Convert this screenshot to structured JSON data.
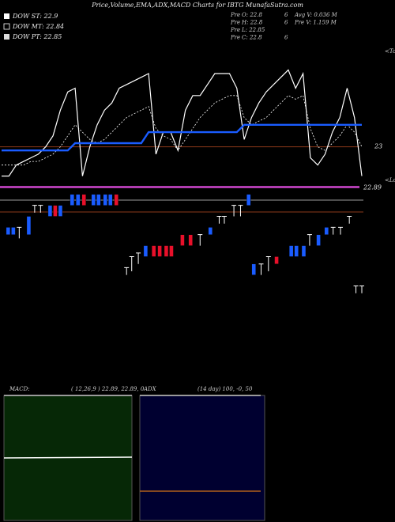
{
  "header": {
    "title": "Price,Volume,EMA,ADX,MACD Charts for IBTG MunafaSutra.com",
    "legend": [
      "DOW ST: 22.9",
      "DOW MT: 22.84",
      "DOW PT: 22.85"
    ],
    "info": [
      [
        "Pre",
        "O: 22.8",
        "6",
        "Avg V: 0.036  M"
      ],
      [
        "Pre",
        "H: 22.8",
        "6",
        "Pre  V: 1.159 M"
      ],
      [
        "Pre",
        "L: 22.85"
      ],
      [
        "Pre",
        "C: 22.8",
        "6"
      ]
    ]
  },
  "chart_data": {
    "type": "line",
    "xlim": [
      0,
      49
    ],
    "ylim": [
      22.58,
      23.28
    ],
    "series": [
      {
        "color": "#ffffff",
        "dashed": false,
        "width": 1.2,
        "values": [
          22.92,
          22.92,
          22.95,
          22.96,
          22.97,
          22.98,
          23.0,
          23.03,
          23.1,
          23.15,
          23.16,
          22.92,
          23.0,
          23.06,
          23.1,
          23.12,
          23.16,
          23.17,
          23.18,
          23.19,
          23.2,
          22.98,
          23.04,
          23.04,
          22.99,
          23.1,
          23.14,
          23.14,
          23.17,
          23.2,
          23.2,
          23.2,
          23.16,
          23.02,
          23.08,
          23.12,
          23.15,
          23.17,
          23.19,
          23.21,
          23.16,
          23.2,
          22.97,
          22.95,
          22.98,
          23.04,
          23.08,
          23.16,
          23.08,
          22.92
        ]
      },
      {
        "color": "#ffffff",
        "dashed": true,
        "width": 0.8,
        "values": [
          22.95,
          22.95,
          22.95,
          22.95,
          22.96,
          22.96,
          22.97,
          22.98,
          23.0,
          23.03,
          23.06,
          23.04,
          23.02,
          23.01,
          23.02,
          23.04,
          23.06,
          23.08,
          23.09,
          23.1,
          23.11,
          23.05,
          23.03,
          23.02,
          22.99,
          23.02,
          23.05,
          23.08,
          23.1,
          23.12,
          23.13,
          23.14,
          23.14,
          23.08,
          23.06,
          23.07,
          23.08,
          23.1,
          23.12,
          23.14,
          23.13,
          23.14,
          23.05,
          23.0,
          22.99,
          23.01,
          23.03,
          23.06,
          23.04,
          23.0
        ]
      },
      {
        "color": "#1a5cff",
        "dashed": false,
        "width": 2.4,
        "values": [
          22.99,
          22.99,
          22.99,
          22.99,
          22.99,
          22.99,
          22.99,
          22.99,
          22.99,
          22.99,
          23.01,
          23.01,
          23.01,
          23.01,
          23.01,
          23.01,
          23.01,
          23.01,
          23.01,
          23.01,
          23.04,
          23.04,
          23.04,
          23.04,
          23.04,
          23.04,
          23.04,
          23.04,
          23.04,
          23.04,
          23.04,
          23.04,
          23.04,
          23.06,
          23.06,
          23.06,
          23.06,
          23.06,
          23.06,
          23.06,
          23.06,
          23.06,
          23.06,
          23.06,
          23.06,
          23.06,
          23.06,
          23.06,
          23.06,
          23.06
        ]
      }
    ],
    "candles": {
      "x": [
        0.9,
        1.6,
        2.4,
        3.7,
        4.5,
        5.3,
        6.6,
        7.3,
        8.0,
        9.6,
        10.4,
        11.2,
        12.5,
        13.2,
        14.1,
        14.8,
        15.6,
        17.0,
        17.7,
        18.6,
        19.6,
        20.7,
        21.5,
        22.4,
        23.1,
        24.6,
        25.7,
        27.0,
        28.4,
        29.6,
        30.3,
        31.6,
        32.5,
        33.6,
        34.3,
        35.3,
        36.3,
        37.4,
        39.4,
        40.1,
        41.1,
        41.9,
        43.1,
        44.2,
        45.1,
        46.1,
        47.3,
        48.2,
        49.0
      ],
      "high": [
        22.78,
        22.78,
        22.78,
        22.81,
        22.84,
        22.84,
        22.84,
        22.84,
        22.84,
        22.87,
        22.87,
        22.87,
        22.87,
        22.87,
        22.87,
        22.87,
        22.87,
        22.67,
        22.7,
        22.71,
        22.73,
        22.73,
        22.73,
        22.73,
        22.73,
        22.76,
        22.76,
        22.76,
        22.78,
        22.81,
        22.81,
        22.84,
        22.84,
        22.87,
        22.68,
        22.68,
        22.7,
        22.7,
        22.73,
        22.73,
        22.73,
        22.76,
        22.76,
        22.78,
        22.78,
        22.78,
        22.81,
        22.62,
        22.62
      ],
      "low": [
        22.76,
        22.76,
        22.75,
        22.76,
        22.82,
        22.82,
        22.81,
        22.81,
        22.81,
        22.84,
        22.84,
        22.84,
        22.84,
        22.84,
        22.84,
        22.84,
        22.84,
        22.65,
        22.66,
        22.68,
        22.7,
        22.7,
        22.7,
        22.7,
        22.7,
        22.73,
        22.73,
        22.73,
        22.76,
        22.79,
        22.79,
        22.81,
        22.81,
        22.84,
        22.65,
        22.65,
        22.66,
        22.68,
        22.7,
        22.7,
        22.7,
        22.73,
        22.73,
        22.76,
        22.76,
        22.76,
        22.79,
        22.6,
        22.6
      ],
      "colors": [
        "#1a5cff",
        "#1a5cff",
        "#ffffff",
        "#1a5cff",
        "#ffffff",
        "#ffffff",
        "#1a5cff",
        "#e8102a",
        "#1a5cff",
        "#1a5cff",
        "#1a5cff",
        "#e8102a",
        "#1a5cff",
        "#1a5cff",
        "#1a5cff",
        "#1a5cff",
        "#e8102a",
        "#ffffff",
        "#ffffff",
        "#ffffff",
        "#1a5cff",
        "#e8102a",
        "#e8102a",
        "#e8102a",
        "#e8102a",
        "#e8102a",
        "#e8102a",
        "#ffffff",
        "#1a5cff",
        "#ffffff",
        "#ffffff",
        "#ffffff",
        "#ffffff",
        "#1a5cff",
        "#1a5cff",
        "#ffffff",
        "#ffffff",
        "#e8102a",
        "#1a5cff",
        "#1a5cff",
        "#1a5cff",
        "#ffffff",
        "#1a5cff",
        "#1a5cff",
        "#ffffff",
        "#ffffff",
        "#ffffff",
        "#ffffff",
        "#ffffff"
      ]
    },
    "reference_lines": [
      {
        "value": 23,
        "color": "#8b3a1a",
        "width": 1
      },
      {
        "value": 22.89,
        "color": "#b03cb0",
        "width": 3
      }
    ],
    "annotations": [
      "<Tops",
      "<Lows"
    ]
  },
  "macd": {
    "title": "MACD:",
    "params": "( 12,26,9 ) 22.89, 22.89, 0"
  },
  "adx": {
    "title": "ADX",
    "params": "(14  day) 100, -0,  50"
  }
}
